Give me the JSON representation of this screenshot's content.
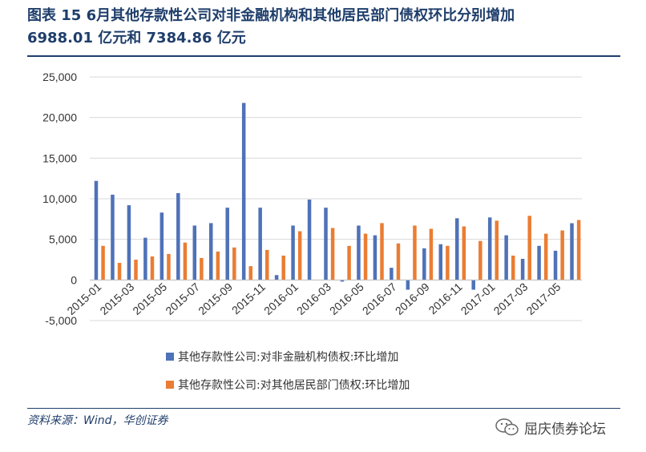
{
  "header": {
    "title_line1": "图表  15    6月其他存款性公司对非金融机构和其他居民部门债权环比分别增加",
    "title_line2": "6988.01 亿元和 7384.86 亿元"
  },
  "footer": {
    "source": "资料来源：Wind，华创证券",
    "watermark": "屈庆债券论坛",
    "watermark_icon": "wechat-icon"
  },
  "chart_data": {
    "type": "bar",
    "title": "",
    "xlabel": "",
    "ylabel": "",
    "ylim": [
      -5000,
      25000
    ],
    "yticks": [
      -5000,
      0,
      5000,
      10000,
      15000,
      20000,
      25000
    ],
    "ytick_labels": [
      "-5,000",
      "0",
      "5,000",
      "10,000",
      "15,000",
      "20,000",
      "25,000"
    ],
    "grid": true,
    "legend_position": "bottom",
    "categories": [
      "2015-01",
      "2015-02",
      "2015-03",
      "2015-04",
      "2015-05",
      "2015-06",
      "2015-07",
      "2015-08",
      "2015-09",
      "2015-10",
      "2015-11",
      "2015-12",
      "2016-01",
      "2016-02",
      "2016-03",
      "2016-04",
      "2016-05",
      "2016-06",
      "2016-07",
      "2016-08",
      "2016-09",
      "2016-10",
      "2016-11",
      "2016-12",
      "2017-01",
      "2017-02",
      "2017-03",
      "2017-04",
      "2017-05",
      "2017-06"
    ],
    "xtick_labels": [
      "2015-01",
      "2015-03",
      "2015-05",
      "2015-07",
      "2015-09",
      "2015-11",
      "2016-01",
      "2016-03",
      "2016-05",
      "2016-07",
      "2016-09",
      "2016-11",
      "2017-01",
      "2017-03",
      "2017-05"
    ],
    "series": [
      {
        "name": "其他存款性公司:对非金融机构债权:环比增加",
        "color": "#4f72b8",
        "values": [
          12200,
          10500,
          9200,
          5200,
          8300,
          10700,
          6700,
          7000,
          8900,
          21800,
          8900,
          600,
          6700,
          9900,
          8900,
          -200,
          6700,
          5500,
          1500,
          -1200,
          3900,
          4400,
          7600,
          -1200,
          7700,
          5500,
          2600,
          4200,
          3600,
          6988.01
        ]
      },
      {
        "name": "其他存款性公司:对其他居民部门债权:环比增加",
        "color": "#ea7d33",
        "values": [
          4200,
          2100,
          2500,
          2900,
          3200,
          4600,
          2700,
          3500,
          4000,
          1700,
          3700,
          3000,
          6000,
          0,
          6400,
          4200,
          5700,
          7000,
          4500,
          6700,
          6300,
          4200,
          6600,
          4800,
          7300,
          3000,
          7900,
          5700,
          6100,
          7384.86
        ]
      }
    ]
  }
}
